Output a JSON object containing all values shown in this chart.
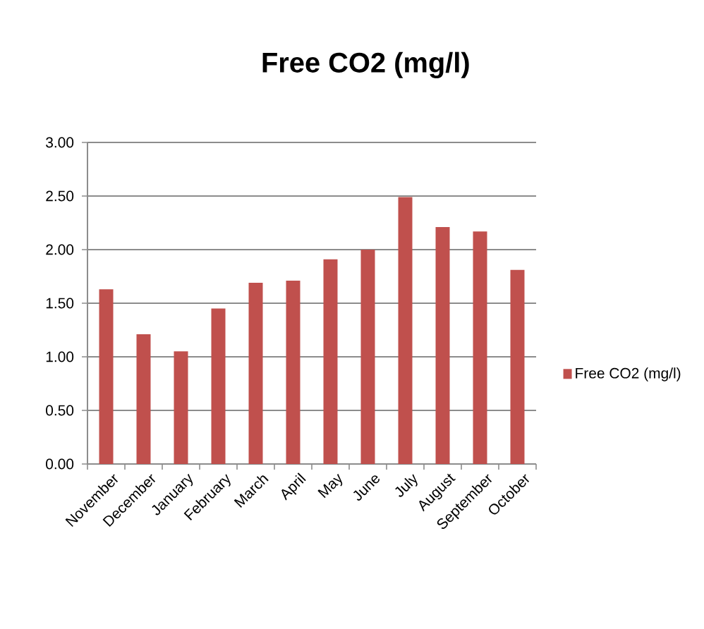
{
  "chart_data": {
    "type": "bar",
    "title": "Free CO2 (mg/l)",
    "categories": [
      "November",
      "December",
      "January",
      "February",
      "March",
      "April",
      "May",
      "June",
      "July",
      "August",
      "September",
      "October"
    ],
    "series": [
      {
        "name": "Free CO2 (mg/l)",
        "color": "#c0504d",
        "values": [
          1.63,
          1.21,
          1.05,
          1.45,
          1.69,
          1.71,
          1.91,
          2.0,
          2.49,
          2.21,
          2.17,
          1.81
        ]
      }
    ],
    "ylim": [
      0,
      3
    ],
    "yticks": [
      {
        "value": 0,
        "label": "0.00"
      },
      {
        "value": 0.5,
        "label": "0.50"
      },
      {
        "value": 1,
        "label": "1.00"
      },
      {
        "value": 1.5,
        "label": "1.50"
      },
      {
        "value": 2,
        "label": "2.00"
      },
      {
        "value": 2.5,
        "label": "2.50"
      },
      {
        "value": 3,
        "label": "3.00"
      }
    ],
    "grid": "y",
    "legend": "right"
  }
}
